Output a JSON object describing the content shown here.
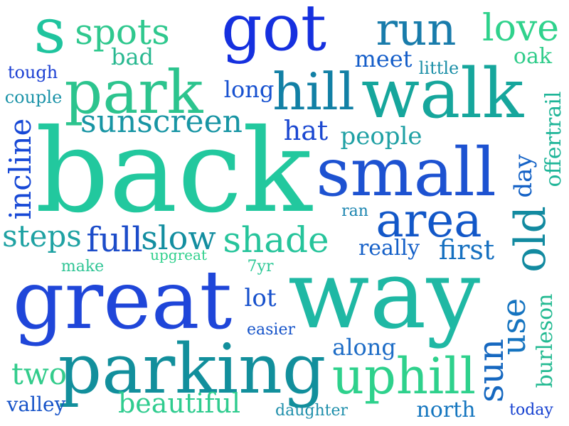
{
  "words": [
    {
      "text": "back",
      "color": "#22c89e"
    },
    {
      "text": "way",
      "color": "#1fb8a4"
    },
    {
      "text": "great",
      "color": "#1f46d9"
    },
    {
      "text": "parking",
      "color": "#128f9c"
    },
    {
      "text": "small",
      "color": "#1d52d1"
    },
    {
      "text": "walk",
      "color": "#16a69c"
    },
    {
      "text": "got",
      "color": "#1530df"
    },
    {
      "text": "park",
      "color": "#2cc48e"
    },
    {
      "text": "hill",
      "color": "#1280a5"
    },
    {
      "text": "uphill",
      "color": "#2ed18c"
    },
    {
      "text": "area",
      "color": "#1257c8"
    },
    {
      "text": "run",
      "color": "#197cab"
    },
    {
      "text": "s",
      "color": "#1fc49e"
    },
    {
      "text": "old",
      "color": "#128aa0"
    },
    {
      "text": "spots",
      "color": "#2fc88e"
    },
    {
      "text": "love",
      "color": "#2fd28c"
    },
    {
      "text": "shade",
      "color": "#26c49b"
    },
    {
      "text": "full",
      "color": "#1c4cc9"
    },
    {
      "text": "slow",
      "color": "#138ea0"
    },
    {
      "text": "sunscreen",
      "color": "#1895a4"
    },
    {
      "text": "sun",
      "color": "#1668c0"
    },
    {
      "text": "steps",
      "color": "#1fa2a3"
    },
    {
      "text": "use",
      "color": "#1574c0"
    },
    {
      "text": "incline",
      "color": "#1748d6"
    },
    {
      "text": "two",
      "color": "#33cc8c"
    },
    {
      "text": "beautiful",
      "color": "#2fcc8f"
    },
    {
      "text": "first",
      "color": "#1670c0"
    },
    {
      "text": "lot",
      "color": "#1650cc"
    },
    {
      "text": "hat",
      "color": "#1b48d1"
    },
    {
      "text": "people",
      "color": "#1fa0a4"
    },
    {
      "text": "meet",
      "color": "#155ec9"
    },
    {
      "text": "along",
      "color": "#1d6cc6"
    },
    {
      "text": "long",
      "color": "#1751d0"
    },
    {
      "text": "really",
      "color": "#1560c8"
    },
    {
      "text": "bad",
      "color": "#28b890"
    },
    {
      "text": "oak",
      "color": "#30cc8a"
    },
    {
      "text": "day",
      "color": "#1462c6"
    },
    {
      "text": "offertrail",
      "color": "#1fb598"
    },
    {
      "text": "burleson",
      "color": "#24ba92"
    },
    {
      "text": "valley",
      "color": "#1552c8"
    },
    {
      "text": "north",
      "color": "#1576bf"
    },
    {
      "text": "tough",
      "color": "#1c40d3"
    },
    {
      "text": "little",
      "color": "#1a8ea6"
    },
    {
      "text": "couple",
      "color": "#1b93a8"
    },
    {
      "text": "easier",
      "color": "#1553c9"
    },
    {
      "text": "daughter",
      "color": "#1f8fab"
    },
    {
      "text": "today",
      "color": "#1540d0"
    },
    {
      "text": "make",
      "color": "#2ec494"
    },
    {
      "text": "ran",
      "color": "#1a84af"
    },
    {
      "text": "7yr",
      "color": "#2cc896"
    },
    {
      "text": "upgreat",
      "color": "#2fd08c"
    }
  ]
}
